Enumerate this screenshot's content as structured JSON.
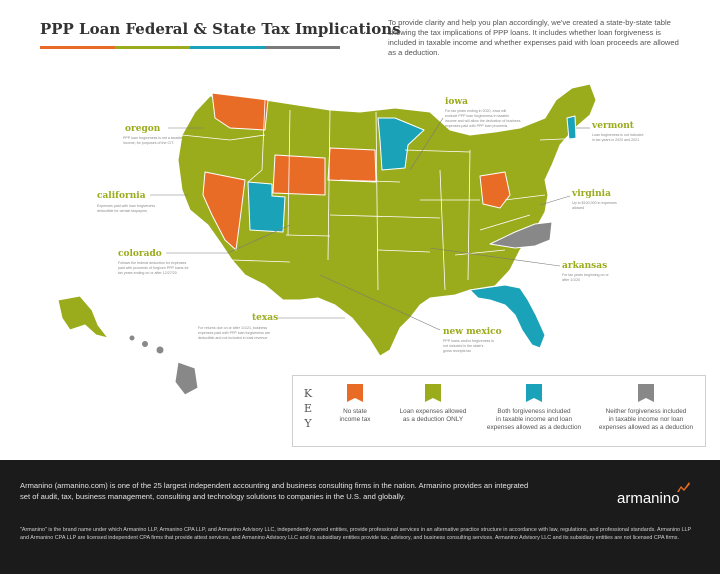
{
  "header": {
    "title": "PPP Loan Federal & State Tax Implications",
    "bar_colors": [
      "#e86c26",
      "#9aab1c",
      "#1aa3b8",
      "#7b7b7b"
    ],
    "intro": "To provide clarity and help you plan accordingly, we've created a state-by-state table showing the tax implications of PPP loans. It includes whether loan forgiveness is included in taxable income and whether expenses paid with loan proceeds are allowed as a deduction."
  },
  "colors": {
    "orange": "#e86c26",
    "green": "#9aab1c",
    "teal": "#1aa3b8",
    "gray": "#888888",
    "green_border": "#ffffff"
  },
  "callouts": [
    {
      "id": "oregon",
      "name": "oregon",
      "desc": [
        "PPP loan forgiveness is not a taxable",
        "income; for purposes of the CIT."
      ]
    },
    {
      "id": "california",
      "name": "california",
      "desc": [
        "Expenses paid with loan forgiveness",
        "deductible for certain taxpayers"
      ]
    },
    {
      "id": "colorado",
      "name": "colorado",
      "desc": [
        "Follows the federal deduction for expenses",
        "paid with proceeds of forgiven PPP loans for",
        "tax years ending on or after 12/27/20"
      ]
    },
    {
      "id": "texas",
      "name": "texas",
      "desc": [
        "For returns due on or after 1/1/21, business",
        "expenses paid with PPP loan forgiveness are",
        "deductible and not included in total revenue"
      ]
    },
    {
      "id": "new-mexico",
      "name": "new mexico",
      "desc": [
        "PPP loans and/or forgiveness is",
        "not included in the state's",
        "gross receipts tax"
      ]
    },
    {
      "id": "iowa",
      "name": "iowa",
      "desc": [
        "For tax years ending in 2020, Iowa will",
        "exclude PPP loan forgiveness in taxable",
        "income and will allow the deduction of business",
        "expenses paid with PPP loan proceeds"
      ]
    },
    {
      "id": "vermont",
      "name": "vermont",
      "desc": [
        "Loan forgiveness is not included",
        "in tax years in 2020 and 2021"
      ]
    },
    {
      "id": "virginia",
      "name": "virginia",
      "desc": [
        "Up to $100,000 in expenses",
        "allowed"
      ]
    },
    {
      "id": "arkansas",
      "name": "arkansas",
      "desc": [
        "For tax years beginning on or",
        "after 1/1/20"
      ]
    }
  ],
  "key": {
    "letters": [
      "K",
      "E",
      "Y"
    ],
    "items": [
      {
        "color": "#e86c26",
        "label": [
          "No state",
          "income tax"
        ]
      },
      {
        "color": "#9aab1c",
        "label": [
          "Loan expenses allowed",
          "as a deduction ONLY"
        ]
      },
      {
        "color": "#1aa3b8",
        "label": [
          "Both forgiveness included",
          "in taxable income and loan",
          "expenses allowed as a deduction"
        ]
      },
      {
        "color": "#888888",
        "label": [
          "Neither forgiveness included",
          "in taxable income nor loan",
          "expenses allowed as a deduction"
        ]
      }
    ]
  },
  "footer": {
    "about": "Armanino (armanino.com) is one of the 25 largest independent accounting and business consulting firms in the nation. Armanino provides an integrated set of audit, tax, business management, consulting and technology solutions to companies in the U.S. and globally.",
    "legal": "\"Armanino\" is the brand name under which Armanino LLP, Armanino CPA LLP, and Armanino Advisory LLC, independently owned entities, provide professional services in an alternative practice structure in accordance with law, regulations, and professional standards. Armanino LLP and Armanino CPA LLP are licensed independent CPA firms that provide attest services, and Armanino Advisory LLC and its subsidiary entities provide tax, advisory, and business consulting services. Armanino Advisory LLC and its subsidiary entities are not licensed CPA firms.",
    "brand": "armanino"
  }
}
